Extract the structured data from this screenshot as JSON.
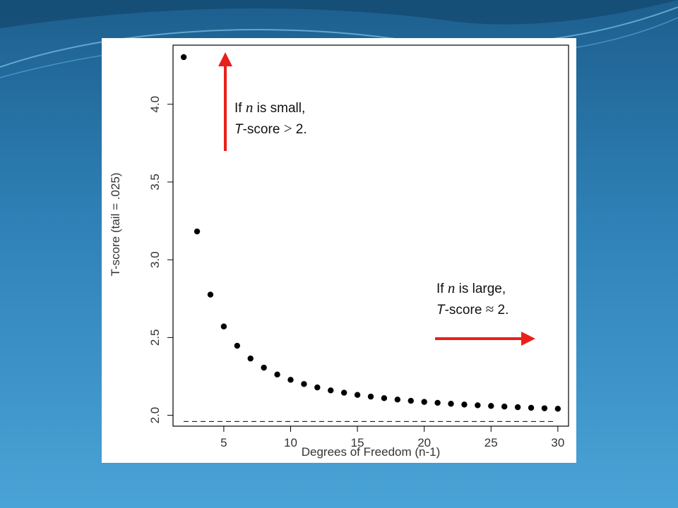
{
  "colors": {
    "bg_dark": "#1d5f8e",
    "bg_light": "#4aa3d6",
    "arrow": "#e8201c",
    "points": "#000000"
  },
  "chart_data": {
    "type": "scatter",
    "xlabel": "Degrees of Freedom (n-1)",
    "ylabel": "T-score (tail = .025)",
    "xlim": [
      1.2,
      30.8
    ],
    "ylim": [
      1.93,
      4.38
    ],
    "xticks": [
      5,
      10,
      15,
      20,
      25,
      30
    ],
    "yticks": [
      2.0,
      2.5,
      3.0,
      3.5,
      4.0
    ],
    "ytick_labels": [
      "2.0",
      "2.5",
      "3.0",
      "3.5",
      "4.0"
    ],
    "x": [
      2,
      3,
      4,
      5,
      6,
      7,
      8,
      9,
      10,
      11,
      12,
      13,
      14,
      15,
      16,
      17,
      18,
      19,
      20,
      21,
      22,
      23,
      24,
      25,
      26,
      27,
      28,
      29,
      30
    ],
    "y": [
      4.303,
      3.182,
      2.776,
      2.571,
      2.447,
      2.365,
      2.306,
      2.262,
      2.228,
      2.201,
      2.179,
      2.16,
      2.145,
      2.131,
      2.12,
      2.11,
      2.101,
      2.093,
      2.086,
      2.08,
      2.074,
      2.069,
      2.064,
      2.06,
      2.056,
      2.052,
      2.048,
      2.045,
      2.042
    ],
    "reference_line": {
      "y": 1.96,
      "style": "dashed"
    },
    "grid": false
  },
  "annotations": {
    "small": {
      "prefix": "If ",
      "var": "n",
      "suffix": " is small,",
      "line2_var": "T",
      "line2_rest": "-score ",
      "line2_op": ">",
      "line2_val": " 2."
    },
    "large": {
      "prefix": "If ",
      "var": "n",
      "suffix": " is large,",
      "line2_var": "T",
      "line2_rest": "-score ",
      "line2_op": "≈",
      "line2_val": " 2."
    }
  }
}
